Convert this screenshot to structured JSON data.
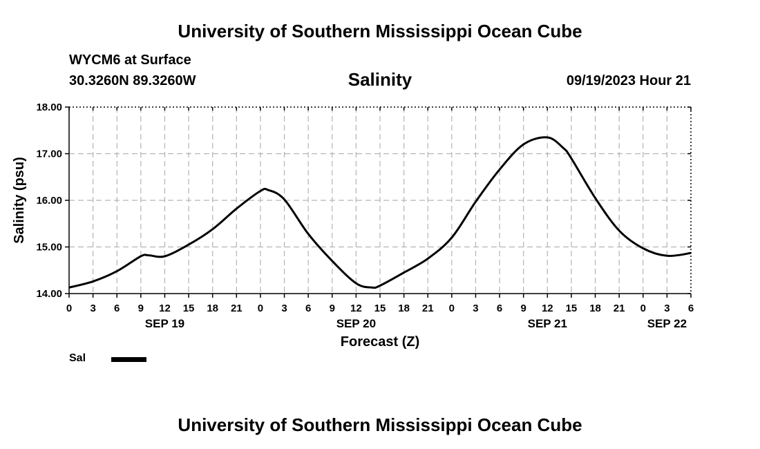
{
  "header": {
    "title": "University of Southern Mississippi Ocean Cube",
    "station": "WYCM6 at Surface",
    "coords": "30.3260N  89.3260W",
    "chart_title": "Salinity",
    "datetime": "09/19/2023 Hour 21"
  },
  "footer": {
    "title": "University of Southern Mississippi Ocean Cube"
  },
  "legend": {
    "label": "Sal",
    "placement": "bottom-left"
  },
  "chart_data": {
    "type": "line",
    "title": "Salinity",
    "xlabel": "Forecast (Z)",
    "ylabel": "Salinity (psu)",
    "ylim": [
      14.0,
      18.0
    ],
    "yticks": [
      14.0,
      15.0,
      16.0,
      17.0,
      18.0
    ],
    "ytick_labels": [
      "14.00",
      "15.00",
      "16.00",
      "17.00",
      "18.00"
    ],
    "xlim": [
      0,
      78
    ],
    "xtick_hours": [
      0,
      3,
      6,
      9,
      12,
      15,
      18,
      21,
      24,
      27,
      30,
      33,
      36,
      39,
      42,
      45,
      48,
      51,
      54,
      57,
      60,
      63,
      66,
      69,
      72,
      75,
      78
    ],
    "xtick_labels": [
      "0",
      "3",
      "6",
      "9",
      "12",
      "15",
      "18",
      "21",
      "0",
      "3",
      "6",
      "9",
      "12",
      "15",
      "18",
      "21",
      "0",
      "3",
      "6",
      "9",
      "12",
      "15",
      "18",
      "21",
      "0",
      "3",
      "6"
    ],
    "date_labels": [
      {
        "hour": 12,
        "label": "SEP 19"
      },
      {
        "hour": 36,
        "label": "SEP 20"
      },
      {
        "hour": 60,
        "label": "SEP 21"
      },
      {
        "hour": 75,
        "label": "SEP 22"
      }
    ],
    "grid": true,
    "line_color": "#000000",
    "series": [
      {
        "name": "Sal",
        "x": [
          0,
          3,
          6,
          9,
          10,
          12,
          15,
          18,
          21,
          24,
          25,
          27,
          30,
          33,
          36,
          38,
          39,
          42,
          45,
          48,
          51,
          54,
          57,
          60,
          62,
          63,
          66,
          69,
          72,
          75,
          78
        ],
        "y": [
          14.13,
          14.26,
          14.48,
          14.8,
          14.82,
          14.8,
          15.05,
          15.38,
          15.82,
          16.2,
          16.22,
          16.02,
          15.28,
          14.7,
          14.22,
          14.13,
          14.17,
          14.45,
          14.75,
          15.2,
          15.97,
          16.66,
          17.2,
          17.35,
          17.12,
          16.9,
          16.05,
          15.35,
          14.97,
          14.81,
          14.87
        ]
      }
    ]
  }
}
